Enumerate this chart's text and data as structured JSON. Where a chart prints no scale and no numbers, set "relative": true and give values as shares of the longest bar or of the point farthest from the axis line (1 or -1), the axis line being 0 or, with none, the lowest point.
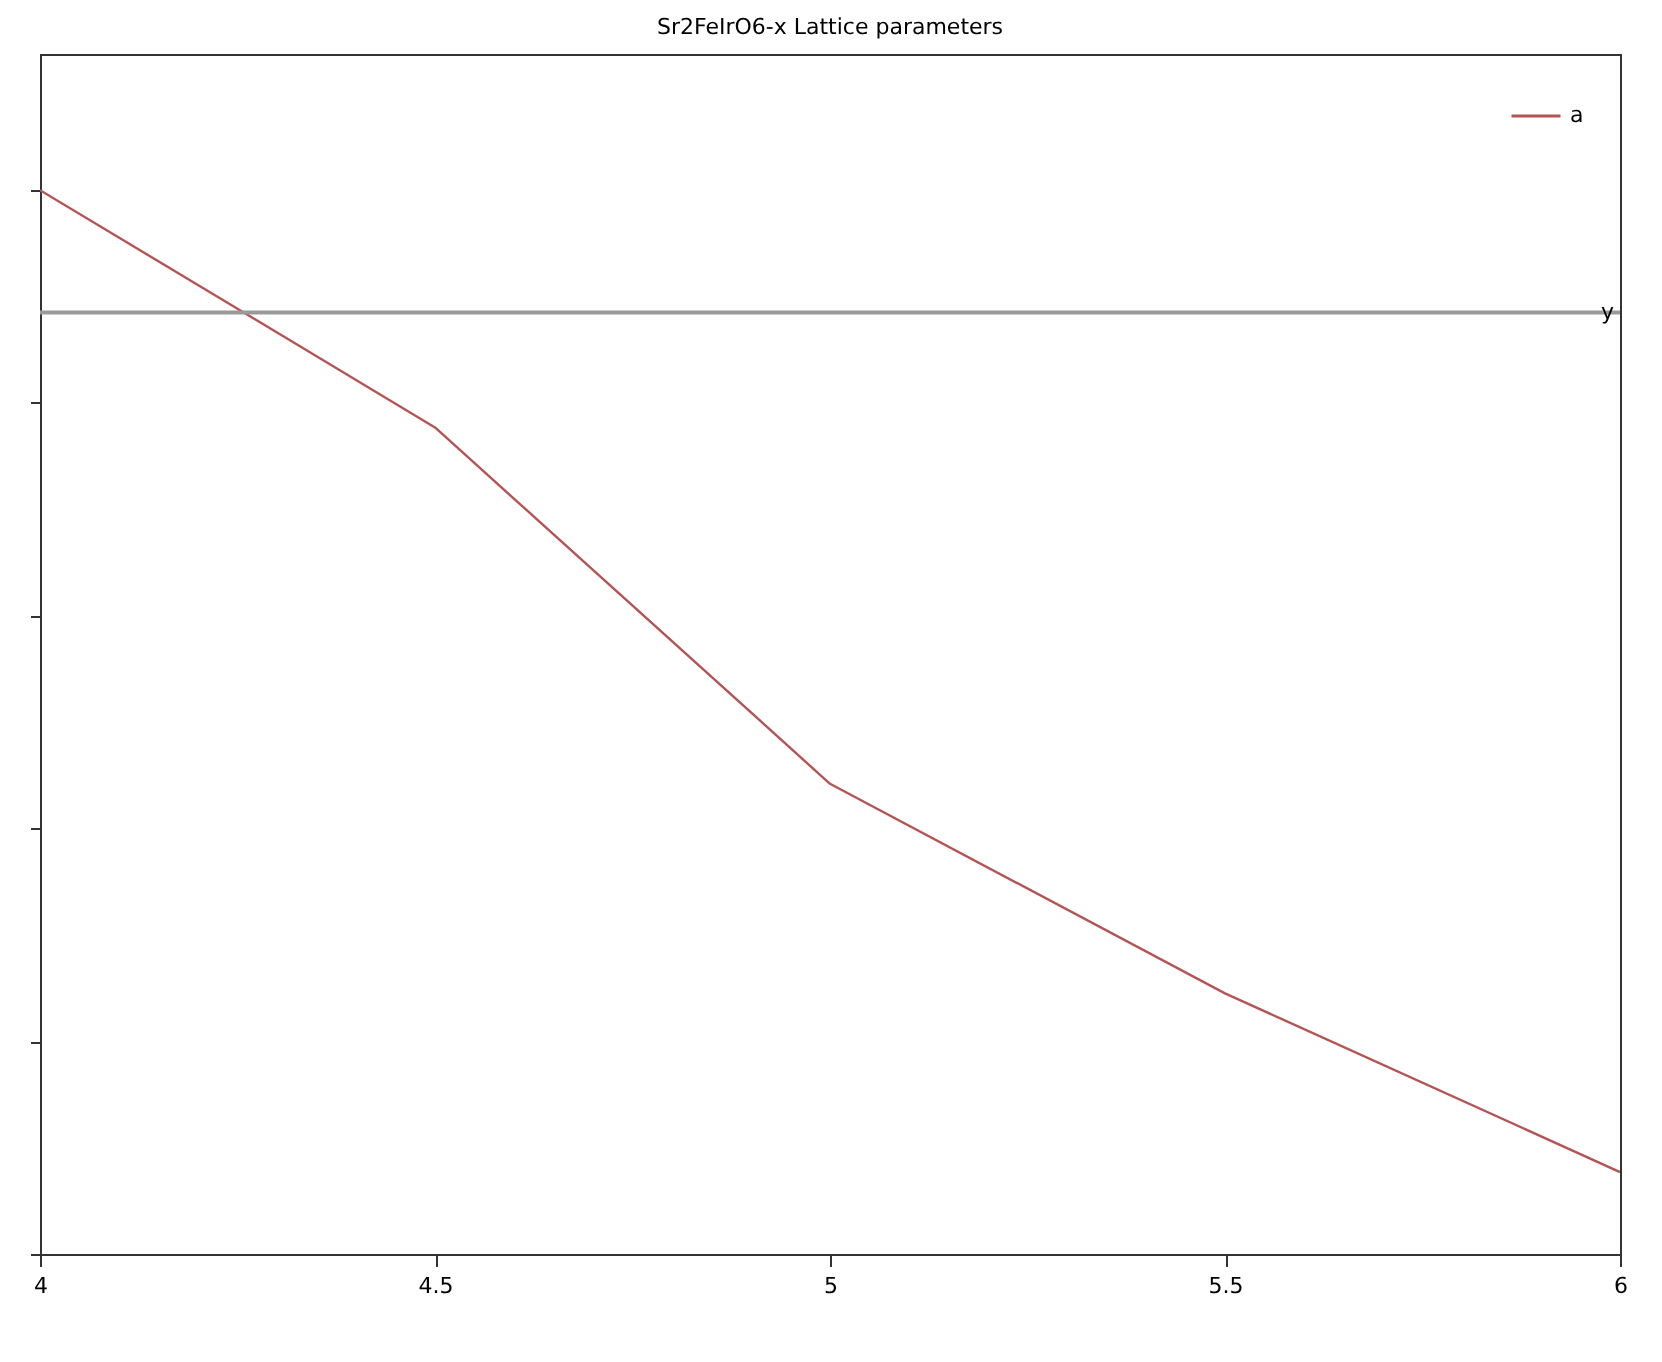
{
  "chart_data": {
    "type": "line",
    "title": "Sr2FeIrO6-x Lattice parameters",
    "x": [
      4,
      4.5,
      5,
      5.5,
      6
    ],
    "xlim": [
      4,
      6
    ],
    "xticks": [
      4,
      4.5,
      5,
      5.5,
      6
    ],
    "relative": true,
    "series": [
      {
        "name": "a",
        "color": "#b45454",
        "values": [
          1,
          0.777,
          0.442,
          0.245,
          0.077
        ]
      }
    ],
    "ref_lines": [
      {
        "axis": "y",
        "value": 0.885,
        "label": "y",
        "color": "#9a9a9a"
      }
    ],
    "legend": "top right",
    "grid": false
  }
}
